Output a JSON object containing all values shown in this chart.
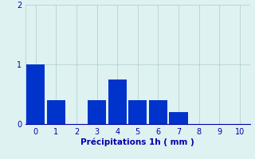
{
  "categories": [
    0,
    1,
    2,
    3,
    4,
    5,
    6,
    7,
    8,
    9,
    10
  ],
  "values": [
    1.0,
    0.4,
    0.0,
    0.4,
    0.75,
    0.4,
    0.4,
    0.2,
    0.0,
    0.0,
    0.0
  ],
  "bar_color": "#0033cc",
  "background_color": "#dff2f2",
  "grid_color": "#aacccc",
  "xlabel": "Précipitations 1h ( mm )",
  "xlabel_color": "#0000aa",
  "tick_color": "#0000aa",
  "ylim": [
    0,
    2.0
  ],
  "yticks": [
    0,
    1,
    2
  ],
  "xlim": [
    -0.5,
    10.5
  ],
  "bar_width": 0.9,
  "tick_fontsize": 7,
  "xlabel_fontsize": 7.5
}
